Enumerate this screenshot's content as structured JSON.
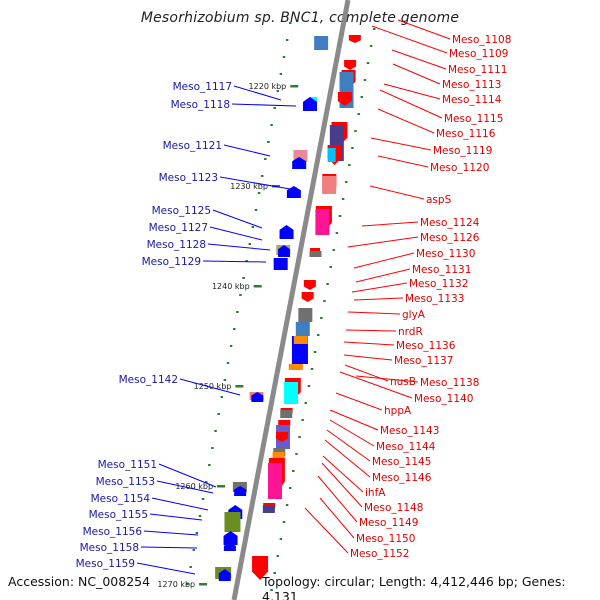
{
  "title": "Mesorhizobium sp. BNC1, complete genome",
  "footer": {
    "accession": "Accession: NC_008254",
    "topology": "Topology: circular; Length: 4,412,446 bp; Genes: 4,131"
  },
  "ticks": [
    "1220 kbp",
    "1230 kbp",
    "1240 kbp",
    "1250 kbp",
    "1260 kbp",
    "1270 kbp"
  ],
  "left_labels": [
    "Meso_1117",
    "Meso_1118",
    "Meso_1121",
    "Meso_1123",
    "Meso_1125",
    "Meso_1127",
    "Meso_1128",
    "Meso_1129",
    "Meso_1142",
    "Meso_1151",
    "Meso_1153",
    "Meso_1154",
    "Meso_1155",
    "Meso_1156",
    "Meso_1158",
    "Meso_1159"
  ],
  "right_labels": [
    "Meso_1108",
    "Meso_1109",
    "Meso_1111",
    "Meso_1113",
    "Meso_1114",
    "Meso_1115",
    "Meso_1116",
    "Meso_1119",
    "Meso_1120",
    "aspS",
    "Meso_1124",
    "Meso_1126",
    "Meso_1130",
    "Meso_1131",
    "Meso_1132",
    "Meso_1133",
    "glyA",
    "nrdR",
    "Meso_1136",
    "Meso_1137",
    "nusB",
    "Meso_1138",
    "Meso_1140",
    "hppA",
    "Meso_1143",
    "Meso_1144",
    "Meso_1145",
    "Meso_1146",
    "ihfA",
    "Meso_1148",
    "Meso_1149",
    "Meso_1150",
    "Meso_1152"
  ],
  "colors": {
    "backbone": "#8a8a8a",
    "minus_strand": "#0000ff",
    "plus_strand": "#ff0000",
    "left_label": "#1a1aa6",
    "right_label": "#e00000",
    "tick_dash": "#2e7d32"
  }
}
